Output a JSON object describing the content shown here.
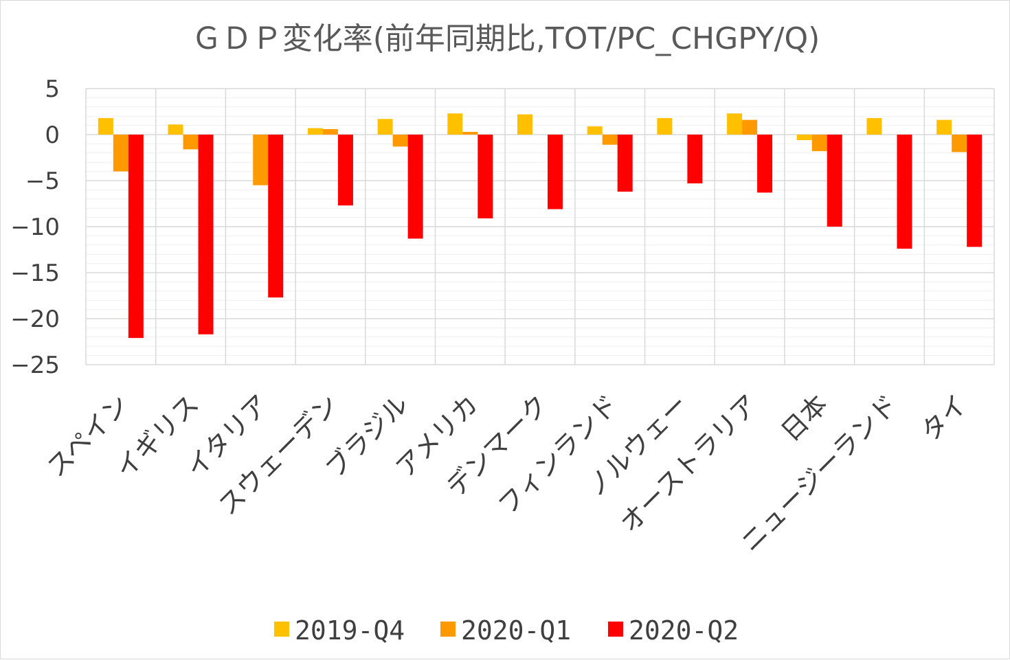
{
  "chart_data": {
    "type": "bar",
    "title": "ＧＤＰ変化率(前年同期比,TOT/PC_CHGPY/Q)",
    "xlabel": "",
    "ylabel": "",
    "ylim": [
      -25,
      5
    ],
    "yticks": [
      5,
      0,
      -5,
      -10,
      -15,
      -20,
      -25
    ],
    "ytick_labels": [
      "5",
      "0",
      "−5",
      "−10",
      "−15",
      "−20",
      "−25"
    ],
    "grid": true,
    "legend_position": "bottom",
    "categories": [
      "スペイン",
      "イギリス",
      "イタリア",
      "スウェーデン",
      "ブラジル",
      "アメリカ",
      "デンマーク",
      "フィンランド",
      "ノルウェー",
      "オーストラリア",
      "日本",
      "ニュージーランド",
      "タイ"
    ],
    "series": [
      {
        "name": "2019-Q4",
        "color": "#FFC000",
        "values": [
          1.8,
          1.1,
          0.0,
          0.7,
          1.7,
          2.3,
          2.2,
          0.9,
          1.8,
          2.3,
          -0.6,
          1.8,
          1.6
        ]
      },
      {
        "name": "2020-Q1",
        "color": "#FF9900",
        "values": [
          -4.0,
          -1.6,
          -5.5,
          0.6,
          -1.3,
          0.3,
          0.0,
          -1.1,
          0.0,
          1.6,
          -1.8,
          0.0,
          -1.9
        ]
      },
      {
        "name": "2020-Q2",
        "color": "#FF0000",
        "values": [
          -22.1,
          -21.7,
          -17.7,
          -7.7,
          -11.3,
          -9.1,
          -8.1,
          -6.2,
          -5.3,
          -6.3,
          -10.0,
          -12.4,
          -12.2
        ]
      }
    ]
  }
}
